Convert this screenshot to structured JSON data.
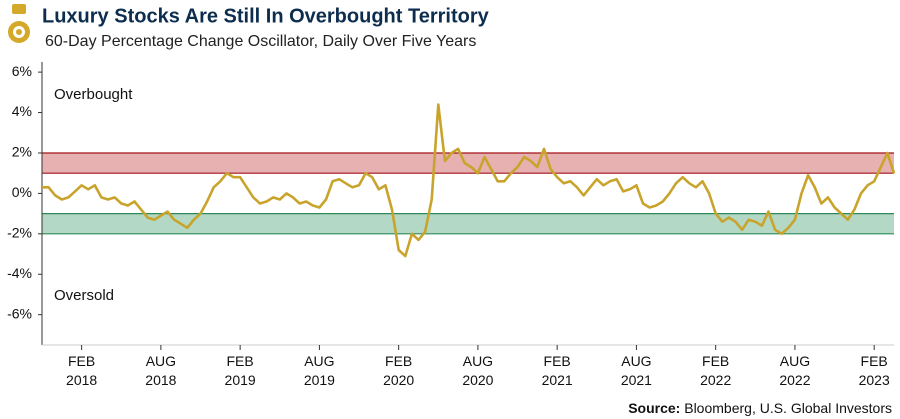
{
  "chart_data": {
    "type": "line",
    "title": "Luxury Stocks Are Still In Overbought Territory",
    "subtitle": "60-Day Percentage Change Oscillator, Daily Over Five Years",
    "source_label": "Source:",
    "source": "Bloomberg, U.S. Global Investors",
    "categories": [
      null,
      null,
      null,
      null,
      null,
      null,
      "FEB 2018",
      null,
      null,
      null,
      null,
      null,
      null,
      null,
      null,
      null,
      null,
      null,
      "AUG 2018",
      null,
      null,
      null,
      null,
      null,
      null,
      null,
      null,
      null,
      null,
      null,
      "FEB 2019",
      null,
      null,
      null,
      null,
      null,
      null,
      null,
      null,
      null,
      null,
      null,
      "AUG 2019",
      null,
      null,
      null,
      null,
      null,
      null,
      null,
      null,
      null,
      null,
      null,
      "FEB 2020",
      null,
      null,
      null,
      null,
      null,
      null,
      null,
      null,
      null,
      null,
      null,
      "AUG 2020",
      null,
      null,
      null,
      null,
      null,
      null,
      null,
      null,
      null,
      null,
      null,
      "FEB 2021",
      null,
      null,
      null,
      null,
      null,
      null,
      null,
      null,
      null,
      null,
      null,
      "AUG 2021",
      null,
      null,
      null,
      null,
      null,
      null,
      null,
      null,
      null,
      null,
      null,
      "FEB 2022",
      null,
      null,
      null,
      null,
      null,
      null,
      null,
      null,
      null,
      null,
      null,
      "AUG 2022",
      null,
      null,
      null,
      null,
      null,
      null,
      null,
      null,
      null,
      null,
      null,
      "FEB 2023",
      null,
      null,
      null
    ],
    "series": [
      {
        "name": "60-Day Percentage Change",
        "color": "#c9a42c",
        "values": [
          0.3,
          0.3,
          -0.1,
          -0.3,
          -0.2,
          0.1,
          0.4,
          0.2,
          0.4,
          -0.2,
          -0.3,
          -0.2,
          -0.5,
          -0.6,
          -0.4,
          -0.8,
          -1.2,
          -1.3,
          -1.1,
          -0.9,
          -1.3,
          -1.5,
          -1.7,
          -1.3,
          -1.0,
          -0.4,
          0.3,
          0.6,
          1.0,
          0.8,
          0.8,
          0.3,
          -0.2,
          -0.5,
          -0.4,
          -0.2,
          -0.3,
          0.0,
          -0.2,
          -0.5,
          -0.4,
          -0.6,
          -0.7,
          -0.3,
          0.6,
          0.7,
          0.5,
          0.3,
          0.4,
          1.0,
          0.8,
          0.2,
          0.4,
          -0.8,
          -2.8,
          -3.1,
          -2.0,
          -2.3,
          -1.9,
          -0.3,
          4.4,
          1.6,
          2.0,
          2.2,
          1.5,
          1.3,
          1.0,
          1.8,
          1.2,
          0.6,
          0.6,
          1.0,
          1.3,
          1.8,
          1.6,
          1.3,
          2.2,
          1.2,
          0.8,
          0.5,
          0.6,
          0.3,
          -0.1,
          0.3,
          0.7,
          0.4,
          0.6,
          0.7,
          0.1,
          0.2,
          0.4,
          -0.5,
          -0.7,
          -0.6,
          -0.4,
          0.0,
          0.5,
          0.8,
          0.5,
          0.3,
          0.6,
          0.0,
          -1.0,
          -1.4,
          -1.2,
          -1.4,
          -1.8,
          -1.3,
          -1.4,
          -1.6,
          -0.9,
          -1.8,
          -2.0,
          -1.7,
          -1.3,
          0.0,
          0.9,
          0.3,
          -0.5,
          -0.2,
          -0.7,
          -1.0,
          -1.3,
          -0.8,
          0.0,
          0.4,
          0.6,
          1.3,
          2.0,
          1.0
        ]
      }
    ],
    "bands": [
      {
        "name": "Overbought",
        "range": [
          1,
          2
        ],
        "color": "#e6b1b0",
        "edge": "#a3141b"
      },
      {
        "name": "Oversold",
        "range": [
          -2,
          -1
        ],
        "color": "#b3d8c5",
        "edge": "#2f8a5a"
      }
    ],
    "ylim": [
      -7.5,
      6.5
    ],
    "yticks": [
      {
        "value": -6,
        "label": "-6%"
      },
      {
        "value": -4,
        "label": "-4%"
      },
      {
        "value": -2,
        "label": "-2%"
      },
      {
        "value": 0,
        "label": "0%"
      },
      {
        "value": 2,
        "label": "2%"
      },
      {
        "value": 4,
        "label": "4%"
      },
      {
        "value": 6,
        "label": "6%"
      }
    ]
  }
}
